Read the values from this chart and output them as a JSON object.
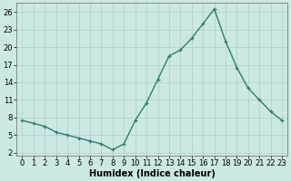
{
  "x": [
    0,
    1,
    2,
    3,
    4,
    5,
    6,
    7,
    8,
    9,
    10,
    11,
    12,
    13,
    14,
    15,
    16,
    17,
    18,
    19,
    20,
    21,
    22,
    23
  ],
  "y": [
    7.5,
    7.0,
    6.5,
    5.5,
    5.0,
    4.5,
    4.0,
    3.5,
    2.5,
    3.5,
    7.5,
    10.5,
    14.5,
    18.5,
    19.5,
    21.5,
    24.0,
    26.5,
    21.0,
    16.5,
    13.0,
    11.0,
    9.0,
    7.5
  ],
  "line_color": "#2e7d6e",
  "marker": "+",
  "marker_size": 3.5,
  "bg_color": "#cce8e4",
  "grid_major_color": "#aacfcb",
  "grid_minor_color": "#bbdbd7",
  "xlabel": "Humidex (Indice chaleur)",
  "xlim": [
    -0.5,
    23.5
  ],
  "ylim": [
    1.5,
    27.5
  ],
  "yticks": [
    2,
    5,
    8,
    11,
    14,
    17,
    20,
    23,
    26
  ],
  "xticks": [
    0,
    1,
    2,
    3,
    4,
    5,
    6,
    7,
    8,
    9,
    10,
    11,
    12,
    13,
    14,
    15,
    16,
    17,
    18,
    19,
    20,
    21,
    22,
    23
  ],
  "xlabel_fontsize": 7,
  "tick_fontsize": 6,
  "linewidth": 1.0
}
